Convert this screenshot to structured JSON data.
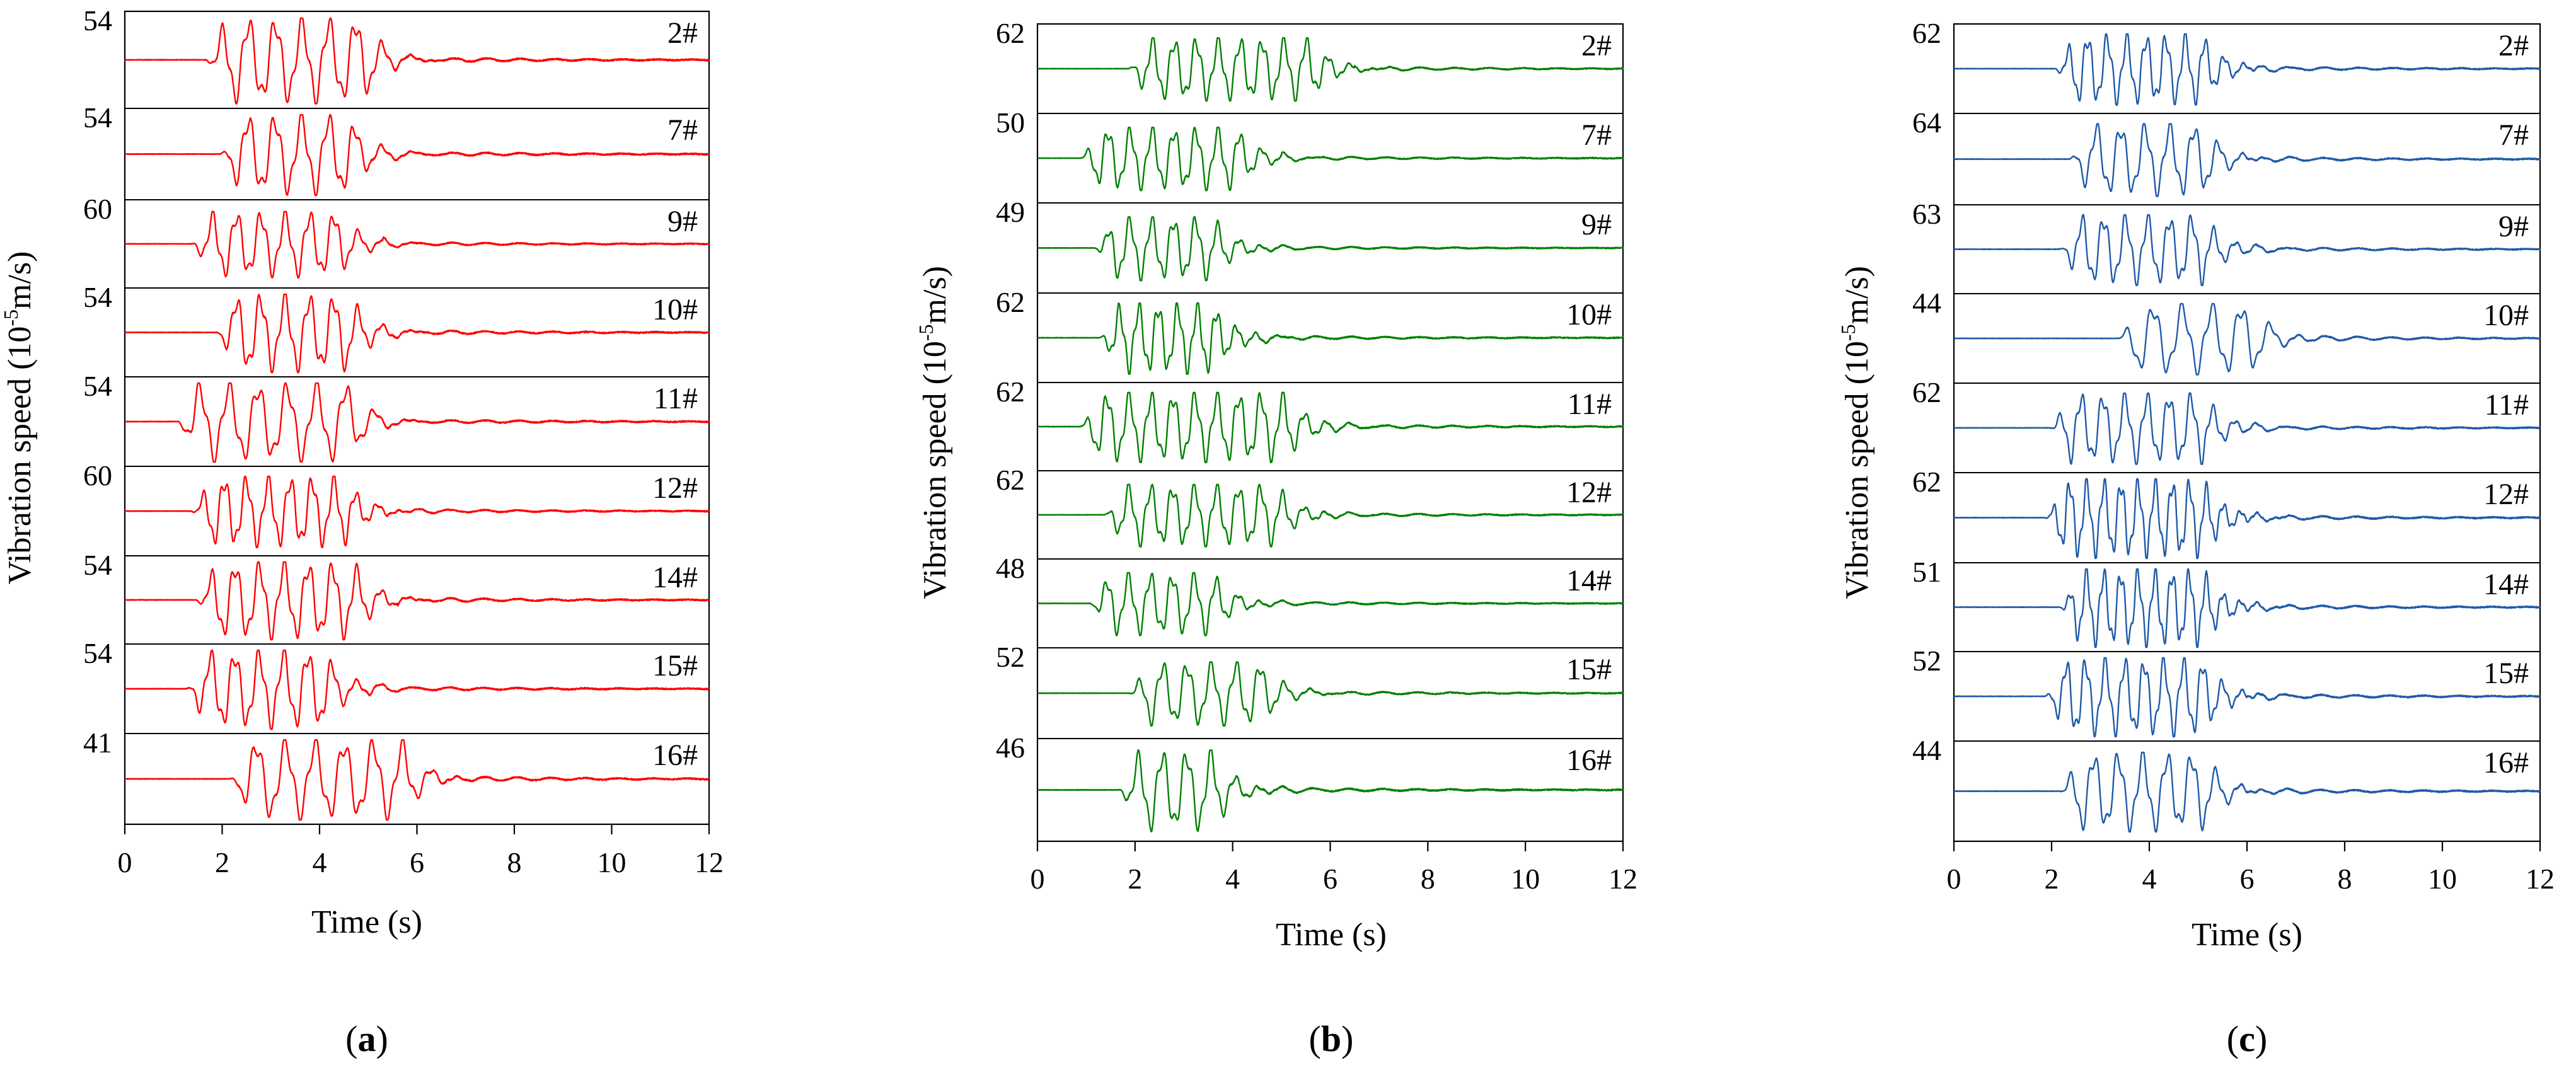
{
  "chart_data": [
    {
      "panel_label": "a",
      "type": "line",
      "color": "#ff0000",
      "xlabel": "Time (s)",
      "ylabel_parts": [
        "Vibration speed (10",
        "-5",
        "m/s)"
      ],
      "xlim": [
        0,
        12
      ],
      "xticks": [
        "0",
        "2",
        "4",
        "6",
        "8",
        "10",
        "12"
      ],
      "channels": [
        {
          "label": "2#",
          "peak": "54",
          "onset": 1.8,
          "end": 5.8,
          "period": 0.55,
          "amp": 1.0
        },
        {
          "label": "7#",
          "peak": "54",
          "onset": 2.1,
          "end": 5.5,
          "period": 0.55,
          "amp": 1.0
        },
        {
          "label": "9#",
          "peak": "60",
          "onset": 1.5,
          "end": 5.3,
          "period": 0.5,
          "amp": 0.85
        },
        {
          "label": "10#",
          "peak": "54",
          "onset": 2.0,
          "end": 5.5,
          "period": 0.5,
          "amp": 1.0
        },
        {
          "label": "11#",
          "peak": "54",
          "onset": 1.2,
          "end": 5.5,
          "period": 0.6,
          "amp": 1.0
        },
        {
          "label": "12#",
          "peak": "60",
          "onset": 1.5,
          "end": 5.4,
          "period": 0.45,
          "amp": 0.9
        },
        {
          "label": "14#",
          "peak": "54",
          "onset": 1.6,
          "end": 5.6,
          "period": 0.5,
          "amp": 1.0
        },
        {
          "label": "15#",
          "peak": "54",
          "onset": 1.4,
          "end": 5.0,
          "period": 0.5,
          "amp": 1.0
        },
        {
          "label": "16#",
          "peak": "41",
          "onset": 2.3,
          "end": 6.6,
          "period": 0.6,
          "amp": 1.0
        }
      ]
    },
    {
      "panel_label": "b",
      "type": "line",
      "color": "#008000",
      "xlabel": "Time (s)",
      "ylabel_parts": [
        "Vibration speed (10",
        "-5",
        "m/s)"
      ],
      "xlim": [
        0,
        12
      ],
      "xticks": [
        "0",
        "2",
        "4",
        "6",
        "8",
        "10",
        "12"
      ],
      "channels": [
        {
          "label": "2#",
          "peak": "62",
          "onset": 2.0,
          "end": 6.5,
          "period": 0.45,
          "amp": 0.8
        },
        {
          "label": "7#",
          "peak": "50",
          "onset": 1.0,
          "end": 5.0,
          "period": 0.45,
          "amp": 0.8
        },
        {
          "label": "9#",
          "peak": "49",
          "onset": 1.3,
          "end": 4.5,
          "period": 0.45,
          "amp": 0.8
        },
        {
          "label": "10#",
          "peak": "62",
          "onset": 1.4,
          "end": 4.5,
          "period": 0.4,
          "amp": 0.9
        },
        {
          "label": "11#",
          "peak": "62",
          "onset": 1.0,
          "end": 6.0,
          "period": 0.45,
          "amp": 0.9
        },
        {
          "label": "12#",
          "peak": "62",
          "onset": 1.5,
          "end": 5.8,
          "period": 0.45,
          "amp": 0.8
        },
        {
          "label": "14#",
          "peak": "48",
          "onset": 1.2,
          "end": 4.5,
          "period": 0.45,
          "amp": 0.8
        },
        {
          "label": "15#",
          "peak": "52",
          "onset": 2.0,
          "end": 5.5,
          "period": 0.5,
          "amp": 0.8
        },
        {
          "label": "16#",
          "peak": "46",
          "onset": 1.8,
          "end": 4.5,
          "period": 0.5,
          "amp": 0.9
        }
      ]
    },
    {
      "panel_label": "c",
      "type": "line",
      "color": "#1f5aa8",
      "xlabel": "Time (s)",
      "ylabel_parts": [
        "Vibration speed (10",
        "-5",
        "m/s)"
      ],
      "xlim": [
        0,
        12
      ],
      "xticks": [
        "0",
        "2",
        "4",
        "6",
        "8",
        "10",
        "12"
      ],
      "channels": [
        {
          "label": "2#",
          "peak": "62",
          "onset": 2.2,
          "end": 6.0,
          "period": 0.4,
          "amp": 0.9
        },
        {
          "label": "7#",
          "peak": "64",
          "onset": 2.5,
          "end": 6.0,
          "period": 0.5,
          "amp": 0.9
        },
        {
          "label": "9#",
          "peak": "63",
          "onset": 2.3,
          "end": 6.0,
          "period": 0.45,
          "amp": 0.9
        },
        {
          "label": "10#",
          "peak": "44",
          "onset": 3.5,
          "end": 7.0,
          "period": 0.6,
          "amp": 0.9
        },
        {
          "label": "11#",
          "peak": "62",
          "onset": 2.1,
          "end": 6.0,
          "period": 0.45,
          "amp": 0.9
        },
        {
          "label": "12#",
          "peak": "62",
          "onset": 2.0,
          "end": 6.0,
          "period": 0.35,
          "amp": 1.0
        },
        {
          "label": "14#",
          "peak": "51",
          "onset": 2.3,
          "end": 6.0,
          "period": 0.35,
          "amp": 1.0
        },
        {
          "label": "15#",
          "peak": "52",
          "onset": 2.0,
          "end": 6.0,
          "period": 0.4,
          "amp": 1.0
        },
        {
          "label": "16#",
          "peak": "44",
          "onset": 2.3,
          "end": 6.0,
          "period": 0.5,
          "amp": 0.9
        }
      ]
    }
  ]
}
